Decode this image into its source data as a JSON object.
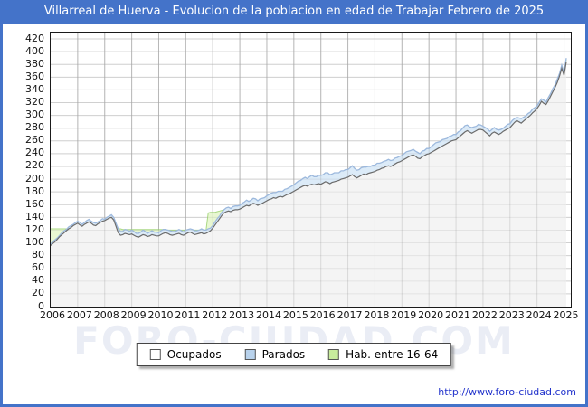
{
  "title_bar": {
    "text": "Villarreal de Huerva - Evolucion de la poblacion en edad de Trabajar Febrero de 2025"
  },
  "theme": {
    "titlebar_bg": "#4473c9",
    "frame_color": "#4473c9",
    "link_color": "#2233cc",
    "plot_bg": "#ffffff",
    "grid_vertical": "#c9c9c9",
    "grid_horizontal": "#dedede"
  },
  "watermark": {
    "text": "FORO-CIUDAD.COM"
  },
  "footer": {
    "url": "http://www.foro-ciudad.com"
  },
  "legend": {
    "items": [
      {
        "label": "Ocupados",
        "swatch_color": "#ffffff"
      },
      {
        "label": "Parados",
        "swatch_color": "#b8d2ec"
      },
      {
        "label": "Hab. entre 16-64",
        "swatch_color": "#c8ec9c"
      }
    ]
  },
  "chart_data": {
    "type": "area",
    "title": "Villarreal de Huerva - Evolucion de la poblacion en edad de Trabajar Febrero de 2025",
    "x_unit": "month",
    "x_start": "2006-01",
    "x_end": "2025-02",
    "months_total": 230,
    "x_axis_span_years": 19.25,
    "x_ticks": [
      2006,
      2007,
      2008,
      2009,
      2010,
      2011,
      2012,
      2013,
      2014,
      2015,
      2016,
      2017,
      2018,
      2019,
      2020,
      2021,
      2022,
      2023,
      2024,
      2025
    ],
    "y_ticks": [
      0,
      20,
      40,
      60,
      80,
      100,
      120,
      140,
      160,
      180,
      200,
      220,
      240,
      260,
      280,
      300,
      320,
      340,
      360,
      380,
      400,
      420
    ],
    "ylim": [
      0,
      430
    ],
    "grid": true,
    "legend_position": "bottom",
    "stacking": "Parados is stacked on top of Ocupados; Hab. entre 16-64 is an independent area drawn behind them",
    "series": [
      {
        "name": "Ocupados",
        "line_color": "#6b6b6b",
        "fill_color": "#f4f4f4",
        "values": [
          96,
          99,
          102,
          106,
          110,
          113,
          116,
          119,
          122,
          124,
          127,
          129,
          131,
          128,
          126,
          129,
          131,
          133,
          131,
          128,
          127,
          130,
          132,
          134,
          135,
          137,
          139,
          140,
          136,
          126,
          116,
          112,
          113,
          115,
          114,
          113,
          114,
          112,
          110,
          109,
          111,
          113,
          112,
          110,
          111,
          113,
          112,
          111,
          111,
          113,
          115,
          116,
          115,
          113,
          112,
          113,
          114,
          115,
          113,
          112,
          114,
          116,
          117,
          115,
          113,
          114,
          115,
          116,
          114,
          115,
          117,
          119,
          123,
          128,
          133,
          138,
          143,
          147,
          149,
          150,
          149,
          151,
          152,
          152,
          153,
          155,
          157,
          159,
          158,
          160,
          162,
          161,
          159,
          161,
          162,
          164,
          166,
          168,
          169,
          171,
          170,
          172,
          173,
          172,
          174,
          176,
          177,
          179,
          181,
          183,
          185,
          187,
          189,
          190,
          189,
          191,
          192,
          191,
          192,
          193,
          192,
          194,
          196,
          195,
          193,
          195,
          196,
          197,
          198,
          200,
          201,
          202,
          203,
          205,
          207,
          204,
          202,
          204,
          206,
          208,
          207,
          209,
          210,
          211,
          212,
          214,
          215,
          217,
          218,
          220,
          221,
          220,
          222,
          224,
          226,
          227,
          229,
          231,
          233,
          235,
          237,
          238,
          236,
          233,
          232,
          235,
          237,
          239,
          240,
          242,
          244,
          246,
          248,
          250,
          252,
          254,
          256,
          258,
          260,
          261,
          262,
          265,
          268,
          271,
          274,
          276,
          274,
          272,
          274,
          276,
          278,
          278,
          277,
          274,
          271,
          268,
          272,
          274,
          272,
          270,
          272,
          275,
          277,
          279,
          281,
          285,
          289,
          292,
          290,
          288,
          291,
          294,
          297,
          300,
          304,
          307,
          311,
          316,
          322,
          319,
          317,
          323,
          330,
          337,
          344,
          352,
          362,
          374,
          363,
          384
        ]
      },
      {
        "name": "Parados",
        "line_color": "#9db9dd",
        "fill_color": "#dcebf8",
        "stacked_on": "Ocupados",
        "values": [
          2,
          3,
          3,
          2,
          2,
          3,
          3,
          2,
          3,
          3,
          2,
          3,
          3,
          4,
          3,
          3,
          4,
          4,
          3,
          4,
          4,
          3,
          3,
          4,
          2,
          3,
          3,
          4,
          4,
          5,
          6,
          6,
          5,
          6,
          6,
          5,
          6,
          6,
          5,
          6,
          6,
          7,
          6,
          5,
          6,
          6,
          5,
          6,
          5,
          6,
          6,
          5,
          5,
          6,
          6,
          5,
          5,
          6,
          6,
          5,
          6,
          5,
          5,
          6,
          6,
          5,
          5,
          6,
          6,
          5,
          5,
          4,
          4,
          5,
          5,
          4,
          5,
          5,
          6,
          6,
          5,
          6,
          6,
          6,
          6,
          7,
          7,
          8,
          7,
          7,
          8,
          8,
          7,
          8,
          8,
          7,
          8,
          8,
          9,
          8,
          9,
          9,
          8,
          9,
          10,
          9,
          10,
          10,
          10,
          11,
          12,
          11,
          12,
          13,
          12,
          13,
          14,
          13,
          12,
          13,
          14,
          13,
          14,
          15,
          14,
          13,
          14,
          13,
          12,
          13,
          12,
          13,
          12,
          13,
          14,
          13,
          12,
          11,
          12,
          11,
          12,
          11,
          10,
          11,
          10,
          11,
          10,
          9,
          10,
          9,
          10,
          9,
          8,
          9,
          8,
          9,
          8,
          9,
          10,
          9,
          8,
          9,
          8,
          9,
          8,
          9,
          8,
          9,
          8,
          9,
          10,
          11,
          10,
          9,
          10,
          9,
          8,
          9,
          8,
          9,
          8,
          9,
          8,
          9,
          10,
          9,
          8,
          9,
          8,
          7,
          8,
          7,
          6,
          7,
          8,
          7,
          6,
          7,
          6,
          7,
          6,
          5,
          6,
          7,
          6,
          7,
          6,
          5,
          6,
          7,
          6,
          5,
          6,
          5,
          6,
          5,
          4,
          5,
          4,
          5,
          4,
          5,
          4,
          5,
          4,
          5,
          4,
          5,
          4,
          6
        ]
      },
      {
        "name": "Hab. entre 16-64",
        "line_color": "#aad884",
        "fill_color": "#e8f7d2",
        "values": [
          122,
          122,
          122,
          122,
          122,
          122,
          122,
          122,
          122,
          122,
          122,
          122,
          123,
          123,
          123,
          123,
          123,
          123,
          123,
          123,
          123,
          123,
          123,
          123,
          123,
          123,
          123,
          122,
          122,
          122,
          122,
          122,
          121,
          121,
          121,
          121,
          121,
          121,
          121,
          121,
          121,
          121,
          121,
          121,
          121,
          121,
          121,
          121,
          121,
          121,
          121,
          120,
          120,
          120,
          120,
          120,
          120,
          120,
          120,
          120,
          120,
          120,
          120,
          120,
          120,
          120,
          120,
          120,
          120,
          120,
          147,
          148,
          148,
          148,
          149,
          150,
          151,
          152,
          153,
          154,
          154,
          155,
          156,
          157,
          157,
          160,
          162,
          165,
          163,
          165,
          168,
          167,
          164,
          167,
          168,
          169,
          172,
          174,
          176,
          177,
          177,
          179,
          179,
          179,
          182,
          183,
          185,
          187,
          189,
          192,
          195,
          196,
          199,
          201,
          199,
          202,
          204,
          202,
          202,
          204,
          204,
          205,
          208,
          208,
          205,
          206,
          208,
          208,
          208,
          211,
          211,
          213,
          213,
          216,
          219,
          215,
          212,
          213,
          216,
          217,
          217,
          218,
          218,
          220,
          220,
          223,
          223,
          224,
          226,
          227,
          229,
          227,
          228,
          231,
          232,
          234,
          235,
          238,
          241,
          242,
          243,
          245,
          242,
          240,
          238,
          242,
          243,
          246,
          246,
          249,
          252,
          255,
          256,
          257,
          260,
          261,
          262,
          265,
          266,
          268,
          268,
          272,
          274,
          278,
          282,
          283,
          280,
          279,
          280,
          281,
          284,
          283,
          281,
          279,
          277,
          273,
          276,
          279,
          276,
          275,
          276,
          278,
          281,
          284,
          285,
          290,
          293,
          295,
          294,
          293,
          295,
          297,
          301,
          303,
          308,
          310,
          313,
          319,
          324,
          322,
          319,
          326,
          332,
          340,
          346,
          355,
          364,
          377,
          365,
          388
        ]
      }
    ]
  }
}
